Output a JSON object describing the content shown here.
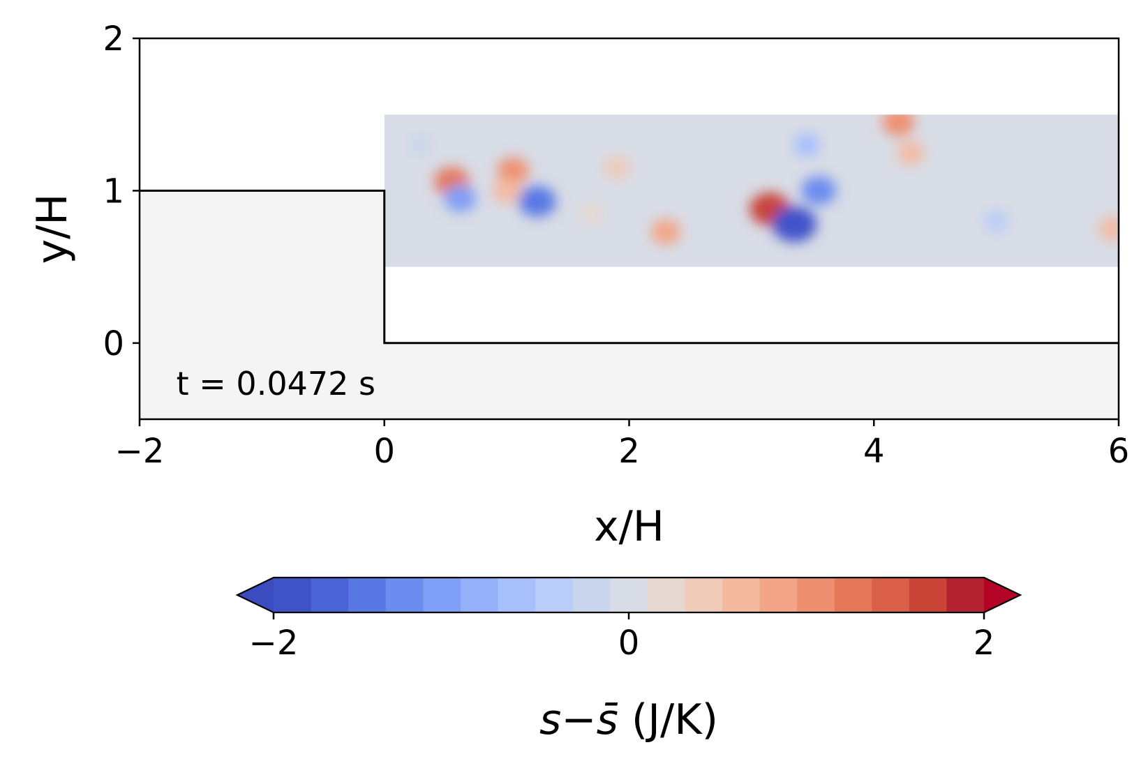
{
  "chart_data": {
    "type": "heatmap",
    "xlabel": "x/H",
    "ylabel": "y/H",
    "xlim": [
      -2,
      6
    ],
    "ylim": [
      -0.5,
      2
    ],
    "x_ticks": [
      "−2",
      "0",
      "2",
      "4",
      "6"
    ],
    "x_tick_values": [
      -2,
      0,
      2,
      4,
      6
    ],
    "y_ticks": [
      "0",
      "1",
      "2"
    ],
    "y_tick_values": [
      0,
      1,
      2
    ],
    "annotation": "t = 0.0472 s",
    "grid": false,
    "geometry": {
      "step_outline": [
        [
          -2,
          1
        ],
        [
          0,
          1
        ],
        [
          0,
          0
        ],
        [
          6,
          0
        ]
      ],
      "solid_fill_color": "#f4f4f4",
      "field_region": {
        "x": [
          0,
          6
        ],
        "y": [
          0.5,
          1.5
        ]
      }
    },
    "colorbar": {
      "label": "s−s̄ (J/K)",
      "label_parts": {
        "var": "s",
        "minus": "−",
        "var_bar": "s̄",
        "unit": " (J/K)"
      },
      "orientation": "horizontal",
      "placement": "bottom",
      "vmin": -2,
      "vmax": 2,
      "ticks": [
        "−2",
        "0",
        "2"
      ],
      "tick_values": [
        -2,
        0,
        2
      ],
      "extend": "both",
      "colors": [
        "#3f53c9",
        "#4a64d8",
        "#5a78e4",
        "#6c8cef",
        "#7f9ef5",
        "#93b0f9",
        "#a7c0fb",
        "#b9cdf8",
        "#c9d5ec",
        "#d8dce6",
        "#e6d8d0",
        "#efcbb8",
        "#f4baa0",
        "#f3a687",
        "#ee9070",
        "#e6785a",
        "#d95f48",
        "#c94337",
        "#b42230"
      ],
      "under_color": "#3b4cc0",
      "over_color": "#b40426"
    },
    "features": [
      {
        "x": 0.55,
        "y": 1.06,
        "value": 1.2
      },
      {
        "x": 1.05,
        "y": 1.13,
        "value": 0.95
      },
      {
        "x": 0.62,
        "y": 0.95,
        "value": -1.0
      },
      {
        "x": 1.25,
        "y": 0.93,
        "value": -1.4
      },
      {
        "x": 1.0,
        "y": 1.0,
        "value": 0.7
      },
      {
        "x": 1.9,
        "y": 1.15,
        "value": 0.5
      },
      {
        "x": 2.3,
        "y": 0.73,
        "value": 0.8
      },
      {
        "x": 3.15,
        "y": 0.88,
        "value": 1.6
      },
      {
        "x": 3.35,
        "y": 0.78,
        "value": -1.9
      },
      {
        "x": 3.55,
        "y": 1.0,
        "value": -1.2
      },
      {
        "x": 3.45,
        "y": 1.3,
        "value": -0.6
      },
      {
        "x": 4.2,
        "y": 1.45,
        "value": 1.0
      },
      {
        "x": 4.3,
        "y": 1.25,
        "value": 0.6
      },
      {
        "x": 5.0,
        "y": 0.8,
        "value": -0.4
      },
      {
        "x": 5.95,
        "y": 0.75,
        "value": 0.6
      },
      {
        "x": 0.3,
        "y": 1.3,
        "value": -0.25
      },
      {
        "x": 1.7,
        "y": 0.85,
        "value": 0.25
      }
    ]
  }
}
